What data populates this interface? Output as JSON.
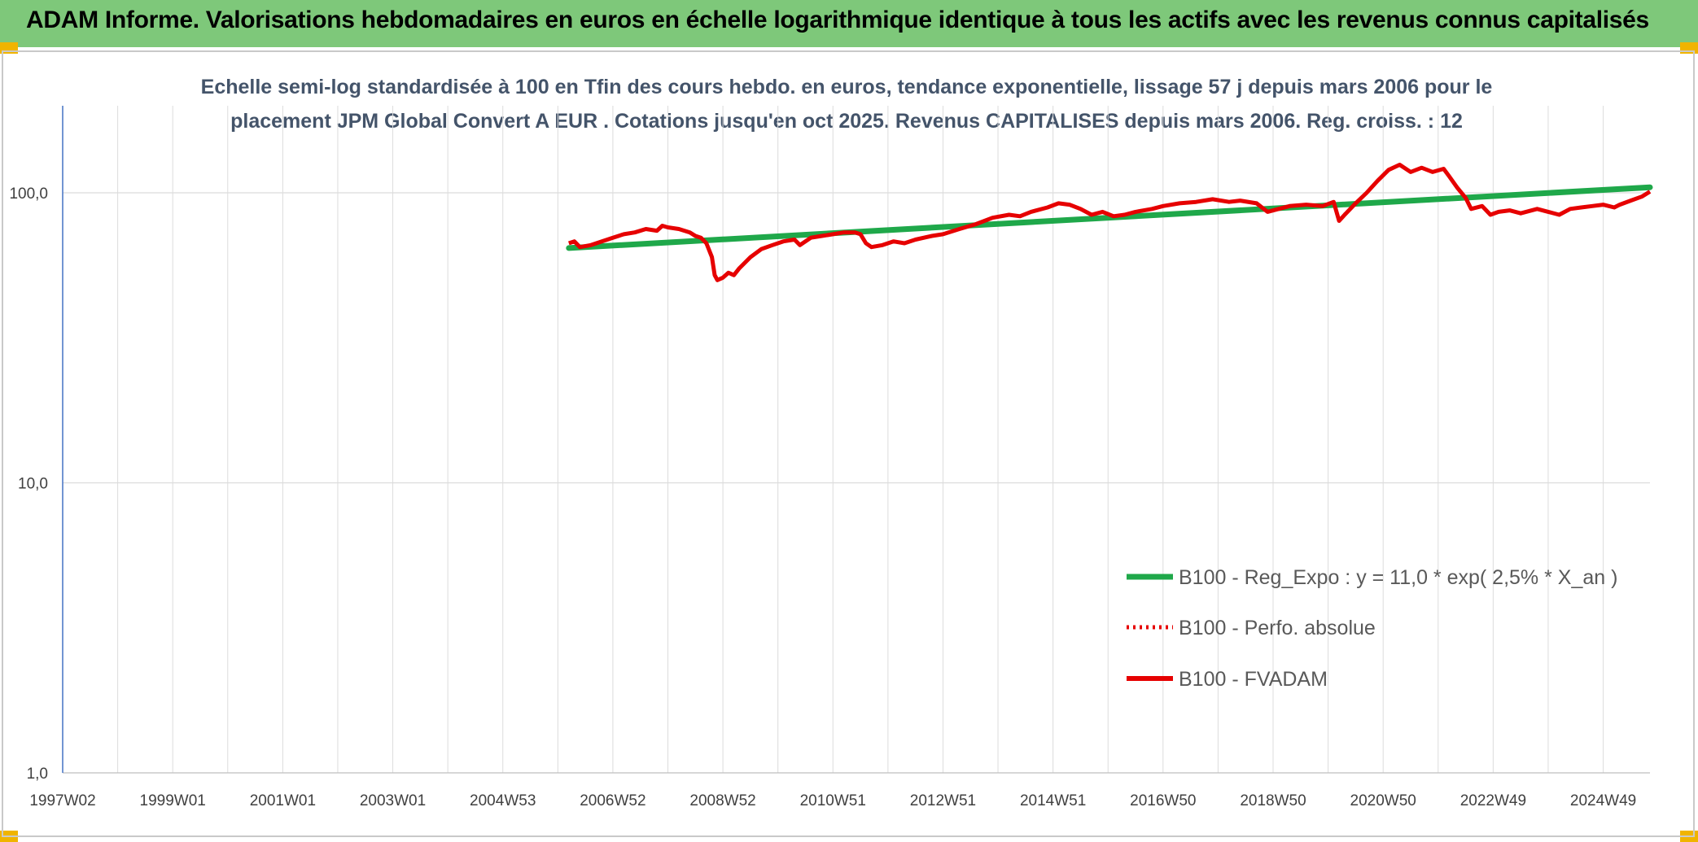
{
  "header": {
    "title": "ADAM Informe. Valorisations hebdomadaires en euros en échelle logarithmique identique à tous les actifs avec les revenus connus capitalisés"
  },
  "colors": {
    "banner": "#7ec87a",
    "regression": "#1fa84a",
    "fvadam": "#e60000",
    "perfo": "#e60000",
    "title": "#44546a"
  },
  "chart_data": {
    "type": "line",
    "title_line1": "Echelle semi-log standardisée à 100 en Tfin des cours hebdo. en euros, tendance exponentielle, lissage 57 j depuis mars 2006 pour le",
    "title_line2": "placement JPM Global Convert A EUR . Cotations jusqu'en oct 2025. Revenus CAPITALISES depuis mars 2006. Reg. croiss. : 12",
    "y_scale": "log",
    "ylim": [
      1,
      200
    ],
    "y_ticks": [
      {
        "value": 1,
        "label": "1,0"
      },
      {
        "value": 10,
        "label": "10,0"
      },
      {
        "value": 100,
        "label": "100,0"
      }
    ],
    "xlim": [
      1997.0,
      2025.85
    ],
    "x_ticks": [
      {
        "year": 1997.0,
        "label": "1997W02"
      },
      {
        "year": 1999.0,
        "label": "1999W01"
      },
      {
        "year": 2001.0,
        "label": "2001W01"
      },
      {
        "year": 2003.0,
        "label": "2003W01"
      },
      {
        "year": 2005.0,
        "label": "2004W53"
      },
      {
        "year": 2007.0,
        "label": "2006W52"
      },
      {
        "year": 2009.0,
        "label": "2008W52"
      },
      {
        "year": 2011.0,
        "label": "2010W51"
      },
      {
        "year": 2013.0,
        "label": "2012W51"
      },
      {
        "year": 2015.0,
        "label": "2014W51"
      },
      {
        "year": 2017.0,
        "label": "2016W50"
      },
      {
        "year": 2019.0,
        "label": "2018W50"
      },
      {
        "year": 2021.0,
        "label": "2020W50"
      },
      {
        "year": 2023.0,
        "label": "2022W49"
      },
      {
        "year": 2025.0,
        "label": "2024W49"
      }
    ],
    "series": [
      {
        "name": "B100 - Reg_Expo : y = 11,0 * exp( 2,5% *  X_an )",
        "style": "solid-green",
        "points": [
          [
            2006.2,
            64.5
          ],
          [
            2025.85,
            104.5
          ]
        ]
      },
      {
        "name": "B100 - Perfo. absolue",
        "style": "dotted-red",
        "points": []
      },
      {
        "name": "B100 - FVADAM",
        "style": "solid-red",
        "points": [
          [
            2006.2,
            67
          ],
          [
            2006.3,
            68
          ],
          [
            2006.4,
            65
          ],
          [
            2006.6,
            66
          ],
          [
            2006.8,
            68
          ],
          [
            2007.0,
            70
          ],
          [
            2007.2,
            72
          ],
          [
            2007.4,
            73
          ],
          [
            2007.6,
            75
          ],
          [
            2007.8,
            74
          ],
          [
            2007.9,
            77
          ],
          [
            2008.0,
            76
          ],
          [
            2008.2,
            75
          ],
          [
            2008.4,
            73
          ],
          [
            2008.5,
            71
          ],
          [
            2008.6,
            70
          ],
          [
            2008.7,
            67
          ],
          [
            2008.8,
            60
          ],
          [
            2008.85,
            52
          ],
          [
            2008.9,
            50
          ],
          [
            2009.0,
            51
          ],
          [
            2009.1,
            53
          ],
          [
            2009.2,
            52
          ],
          [
            2009.3,
            55
          ],
          [
            2009.5,
            60
          ],
          [
            2009.7,
            64
          ],
          [
            2009.9,
            66
          ],
          [
            2010.1,
            68
          ],
          [
            2010.3,
            69
          ],
          [
            2010.4,
            66
          ],
          [
            2010.5,
            68
          ],
          [
            2010.6,
            70
          ],
          [
            2010.8,
            71
          ],
          [
            2011.0,
            72
          ],
          [
            2011.2,
            73
          ],
          [
            2011.4,
            73
          ],
          [
            2011.5,
            72
          ],
          [
            2011.6,
            67
          ],
          [
            2011.7,
            65
          ],
          [
            2011.9,
            66
          ],
          [
            2012.1,
            68
          ],
          [
            2012.3,
            67
          ],
          [
            2012.5,
            69
          ],
          [
            2012.8,
            71
          ],
          [
            2013.0,
            72
          ],
          [
            2013.3,
            75
          ],
          [
            2013.6,
            78
          ],
          [
            2013.9,
            82
          ],
          [
            2014.2,
            84
          ],
          [
            2014.4,
            83
          ],
          [
            2014.6,
            86
          ],
          [
            2014.9,
            89
          ],
          [
            2015.1,
            92
          ],
          [
            2015.3,
            91
          ],
          [
            2015.5,
            88
          ],
          [
            2015.7,
            84
          ],
          [
            2015.9,
            86
          ],
          [
            2016.1,
            83
          ],
          [
            2016.3,
            84
          ],
          [
            2016.5,
            86
          ],
          [
            2016.8,
            88
          ],
          [
            2017.0,
            90
          ],
          [
            2017.3,
            92
          ],
          [
            2017.6,
            93
          ],
          [
            2017.9,
            95
          ],
          [
            2018.2,
            93
          ],
          [
            2018.4,
            94
          ],
          [
            2018.7,
            92
          ],
          [
            2018.9,
            86
          ],
          [
            2019.1,
            88
          ],
          [
            2019.3,
            90
          ],
          [
            2019.6,
            91
          ],
          [
            2019.9,
            90
          ],
          [
            2020.1,
            93
          ],
          [
            2020.2,
            80
          ],
          [
            2020.3,
            84
          ],
          [
            2020.5,
            92
          ],
          [
            2020.7,
            100
          ],
          [
            2020.9,
            110
          ],
          [
            2021.1,
            120
          ],
          [
            2021.3,
            125
          ],
          [
            2021.5,
            118
          ],
          [
            2021.7,
            122
          ],
          [
            2021.9,
            118
          ],
          [
            2022.1,
            121
          ],
          [
            2022.2,
            114
          ],
          [
            2022.35,
            104
          ],
          [
            2022.5,
            96
          ],
          [
            2022.6,
            88
          ],
          [
            2022.8,
            90
          ],
          [
            2022.95,
            84
          ],
          [
            2023.1,
            86
          ],
          [
            2023.3,
            87
          ],
          [
            2023.5,
            85
          ],
          [
            2023.8,
            88
          ],
          [
            2024.0,
            86
          ],
          [
            2024.2,
            84
          ],
          [
            2024.4,
            88
          ],
          [
            2024.6,
            89
          ],
          [
            2024.8,
            90
          ],
          [
            2025.0,
            91
          ],
          [
            2025.2,
            89
          ],
          [
            2025.3,
            91
          ],
          [
            2025.5,
            94
          ],
          [
            2025.7,
            97
          ],
          [
            2025.85,
            101
          ]
        ]
      }
    ],
    "legend_position": "bottom-right"
  }
}
